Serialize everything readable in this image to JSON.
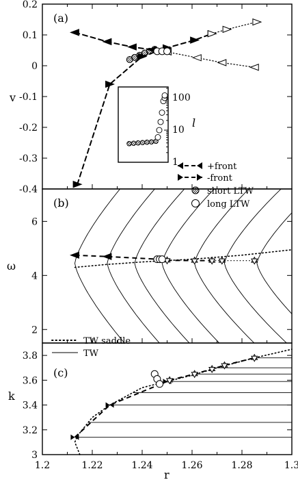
{
  "chart_data": [
    {
      "panel": "(a)",
      "type": "line",
      "ylabel": "v",
      "xlim": [
        1.2,
        1.3
      ],
      "ylim": [
        -0.4,
        0.2
      ],
      "yticks": [
        "0.2",
        "0.1",
        "0",
        "-0.1",
        "-0.2",
        "-0.3",
        "-0.4"
      ],
      "series": [
        {
          "name": "+front",
          "style": "dashed-left-filled",
          "x": [
            1.213,
            1.226,
            1.236,
            1.244,
            1.25
          ],
          "y": [
            0.108,
            0.078,
            0.061,
            0.052,
            0.045
          ]
        },
        {
          "name": "+front-dotted",
          "style": "dotted-left-open",
          "x": [
            1.25,
            1.262,
            1.272,
            1.285
          ],
          "y": [
            0.045,
            0.026,
            0.01,
            -0.005
          ]
        },
        {
          "name": "-front",
          "style": "dashed-right-filled",
          "x": [
            1.214,
            1.227,
            1.24,
            1.25,
            1.261,
            1.268
          ],
          "y": [
            -0.385,
            -0.06,
            0.03,
            0.058,
            0.083,
            0.104
          ]
        },
        {
          "name": "-front-dotted",
          "style": "dotted-right-open",
          "x": [
            1.268,
            1.274,
            1.286
          ],
          "y": [
            0.104,
            0.118,
            0.142
          ]
        },
        {
          "name": "short LTW",
          "marker": "hatched-circle",
          "x": [
            1.235,
            1.237,
            1.239,
            1.241,
            1.243,
            1.245
          ],
          "y": [
            0.02,
            0.027,
            0.034,
            0.041,
            0.047,
            0.053
          ]
        },
        {
          "name": "long LTW",
          "marker": "open-circle",
          "x": [
            1.246,
            1.248,
            1.25
          ],
          "y": [
            0.047,
            0.047,
            0.047
          ]
        }
      ],
      "inset": {
        "ylabel": "l",
        "scale": "log",
        "ylim": [
          1,
          200
        ],
        "yticks": [
          "1",
          "10",
          "100"
        ],
        "short_ltw_y": [
          3.8,
          3.9,
          4.0,
          4.1,
          4.2,
          4.3,
          4.5
        ],
        "long_ltw_y": [
          6,
          10,
          18,
          35,
          80,
          100,
          120
        ]
      }
    },
    {
      "panel": "(b)",
      "type": "line",
      "ylabel": "ω",
      "xlim": [
        1.2,
        1.3
      ],
      "ylim": [
        1.5,
        7.2
      ],
      "yticks": [
        "6",
        "4",
        "2"
      ],
      "series": [
        {
          "name": "+front",
          "x": [
            1.213,
            1.226,
            1.246
          ],
          "y": [
            4.75,
            4.7,
            4.6
          ]
        },
        {
          "name": "-front",
          "x": [
            1.25,
            1.261,
            1.268,
            1.272,
            1.285
          ],
          "y": [
            4.56,
            4.55,
            4.55,
            4.55,
            4.55
          ]
        },
        {
          "name": "short LTW",
          "x": [
            1.247,
            1.248,
            1.25
          ],
          "y": [
            4.58,
            4.58,
            4.58
          ]
        },
        {
          "name": "long LTW",
          "x": [
            1.246,
            1.247,
            1.248
          ],
          "y": [
            4.6,
            4.6,
            4.6
          ]
        },
        {
          "name": "TW saddle",
          "x": [
            1.213,
            1.225,
            1.24,
            1.26,
            1.28,
            1.3
          ],
          "y": [
            4.3,
            4.4,
            4.5,
            4.6,
            4.75,
            4.95
          ]
        }
      ],
      "tw_curve_vertices_r": [
        1.213,
        1.226,
        1.237,
        1.248,
        1.261,
        1.273,
        1.286
      ]
    },
    {
      "panel": "(c)",
      "type": "line",
      "ylabel": "k",
      "xlabel": "r",
      "xlim": [
        1.2,
        1.3
      ],
      "ylim": [
        3.0,
        3.9
      ],
      "xticks": [
        "1.2",
        "1.22",
        "1.24",
        "1.26",
        "1.28",
        "1.3"
      ],
      "yticks": [
        "3",
        "3.2",
        "3.4",
        "3.6",
        "3.8"
      ],
      "series": [
        {
          "name": "TW saddle",
          "x": [
            1.215,
            1.213,
            1.214,
            1.22,
            1.227,
            1.24,
            1.25,
            1.26,
            1.27,
            1.285,
            1.3
          ],
          "y": [
            3.0,
            3.1,
            3.15,
            3.3,
            3.4,
            3.54,
            3.59,
            3.64,
            3.7,
            3.78,
            3.85
          ]
        },
        {
          "name": "+front",
          "x": [
            1.213,
            1.227,
            1.25
          ],
          "y": [
            3.14,
            3.4,
            3.59
          ]
        },
        {
          "name": "-front",
          "x": [
            1.251,
            1.261,
            1.268,
            1.273,
            1.285
          ],
          "y": [
            3.6,
            3.65,
            3.69,
            3.72,
            3.78
          ]
        },
        {
          "name": "long LTW",
          "x": [
            1.245,
            1.246,
            1.247
          ],
          "y": [
            3.65,
            3.61,
            3.57
          ]
        },
        {
          "name": "short LTW",
          "x": [
            1.249,
            1.25
          ],
          "y": [
            3.58,
            3.59
          ]
        }
      ],
      "tw_levels_k": [
        3.14,
        3.26,
        3.4,
        3.5,
        3.59,
        3.65,
        3.7,
        3.78
      ]
    }
  ],
  "legend_a": {
    "items": [
      "+front",
      "-front",
      "short LTW",
      "long LTW"
    ]
  },
  "legend_c": {
    "items": [
      "TW saddle",
      "TW"
    ]
  }
}
